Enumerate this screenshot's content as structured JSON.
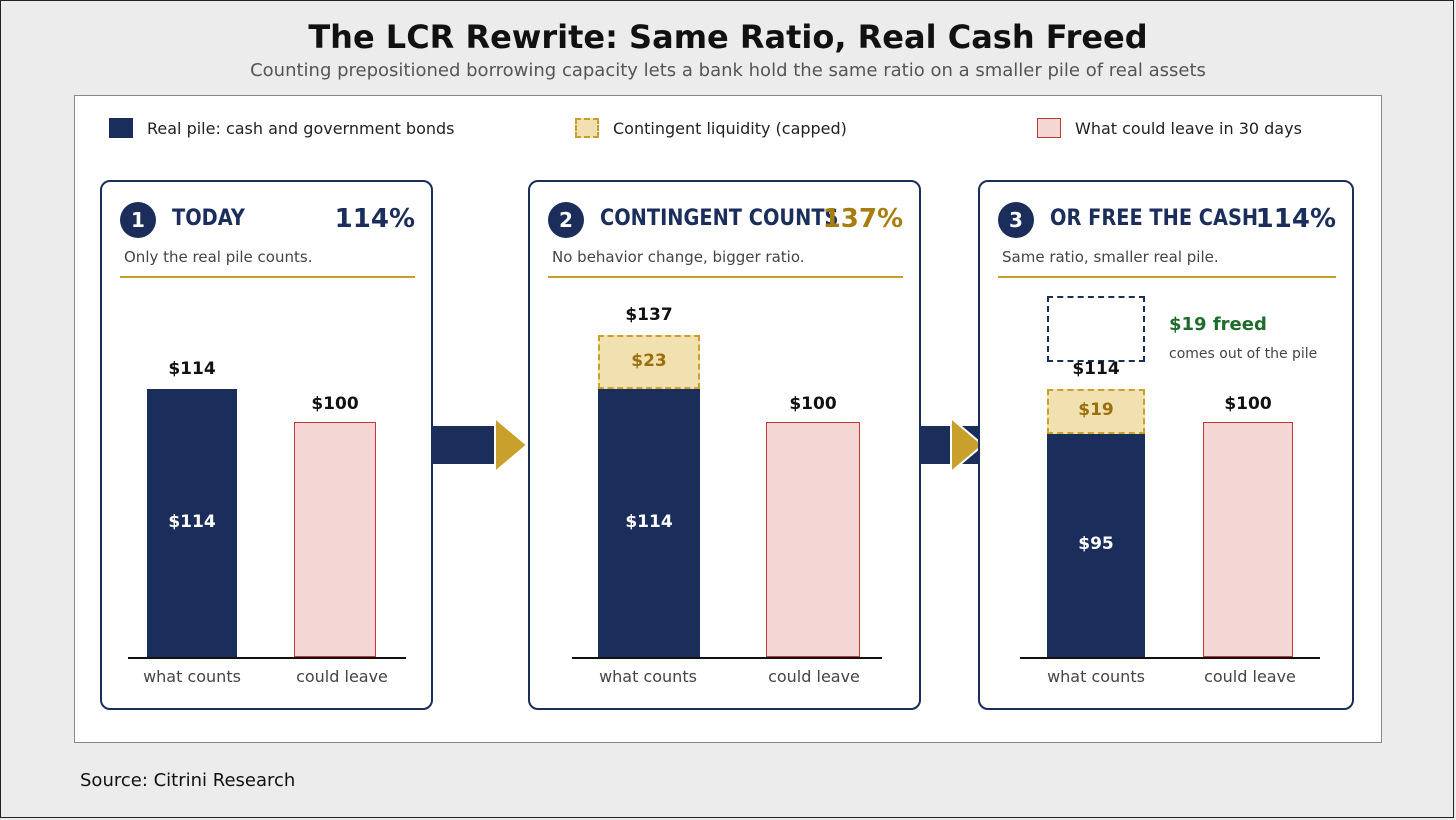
{
  "title": "The LCR Rewrite: Same Ratio, Real Cash Freed",
  "subtitle": "Counting prepositioned borrowing capacity lets a bank hold the same ratio on a smaller pile of real assets",
  "source": "Source: Citrini Research",
  "legend": [
    {
      "label": "Real pile: cash and government bonds",
      "color": "#1b2d5b"
    },
    {
      "label": "Contingent liquidity (capped)",
      "color": "#f1e0b0"
    },
    {
      "label": "What could leave in 30 days",
      "color": "#f4d6d4"
    }
  ],
  "panels": [
    {
      "number": "1",
      "title": "TODAY",
      "ratio": "114%",
      "description": "Only the real pile counts."
    },
    {
      "number": "2",
      "title": "CONTINGENT COUNTS",
      "ratio": "137%",
      "description": "No behavior change, bigger ratio."
    },
    {
      "number": "3",
      "title": "OR FREE THE CASH",
      "ratio": "114%",
      "description": "Same ratio, smaller real pile.",
      "freed_title": "$19 freed",
      "freed_sub": "comes out of the pile"
    }
  ],
  "chart_data": [
    {
      "type": "bar",
      "categories": [
        "what counts",
        "could leave"
      ],
      "series": [
        {
          "name": "Real pile: cash and government bonds",
          "values": [
            114,
            null
          ]
        },
        {
          "name": "Contingent liquidity (capped)",
          "values": [
            0,
            null
          ]
        },
        {
          "name": "What could leave in 30 days",
          "values": [
            null,
            100
          ]
        }
      ],
      "labels": {
        "real": "$114",
        "contingent": "",
        "total": "$114",
        "leave": "$100"
      }
    },
    {
      "type": "bar",
      "categories": [
        "what counts",
        "could leave"
      ],
      "series": [
        {
          "name": "Real pile: cash and government bonds",
          "values": [
            114,
            null
          ]
        },
        {
          "name": "Contingent liquidity (capped)",
          "values": [
            23,
            null
          ]
        },
        {
          "name": "What could leave in 30 days",
          "values": [
            null,
            100
          ]
        }
      ],
      "labels": {
        "real": "$114",
        "contingent": "$23",
        "total": "$137",
        "leave": "$100"
      }
    },
    {
      "type": "bar",
      "categories": [
        "what counts",
        "could leave"
      ],
      "series": [
        {
          "name": "Real pile: cash and government bonds",
          "values": [
            95,
            null
          ]
        },
        {
          "name": "Contingent liquidity (capped)",
          "values": [
            19,
            null
          ]
        },
        {
          "name": "What could leave in 30 days",
          "values": [
            null,
            100
          ]
        }
      ],
      "labels": {
        "real": "$95",
        "contingent": "$19",
        "total": "$114",
        "leave": "$100"
      }
    }
  ],
  "colors": {
    "navy": "#1b2d5b",
    "gold": "#c9a02c",
    "pink": "#f4d6d4",
    "red": "#c0383a",
    "green": "#1e6b2a"
  }
}
